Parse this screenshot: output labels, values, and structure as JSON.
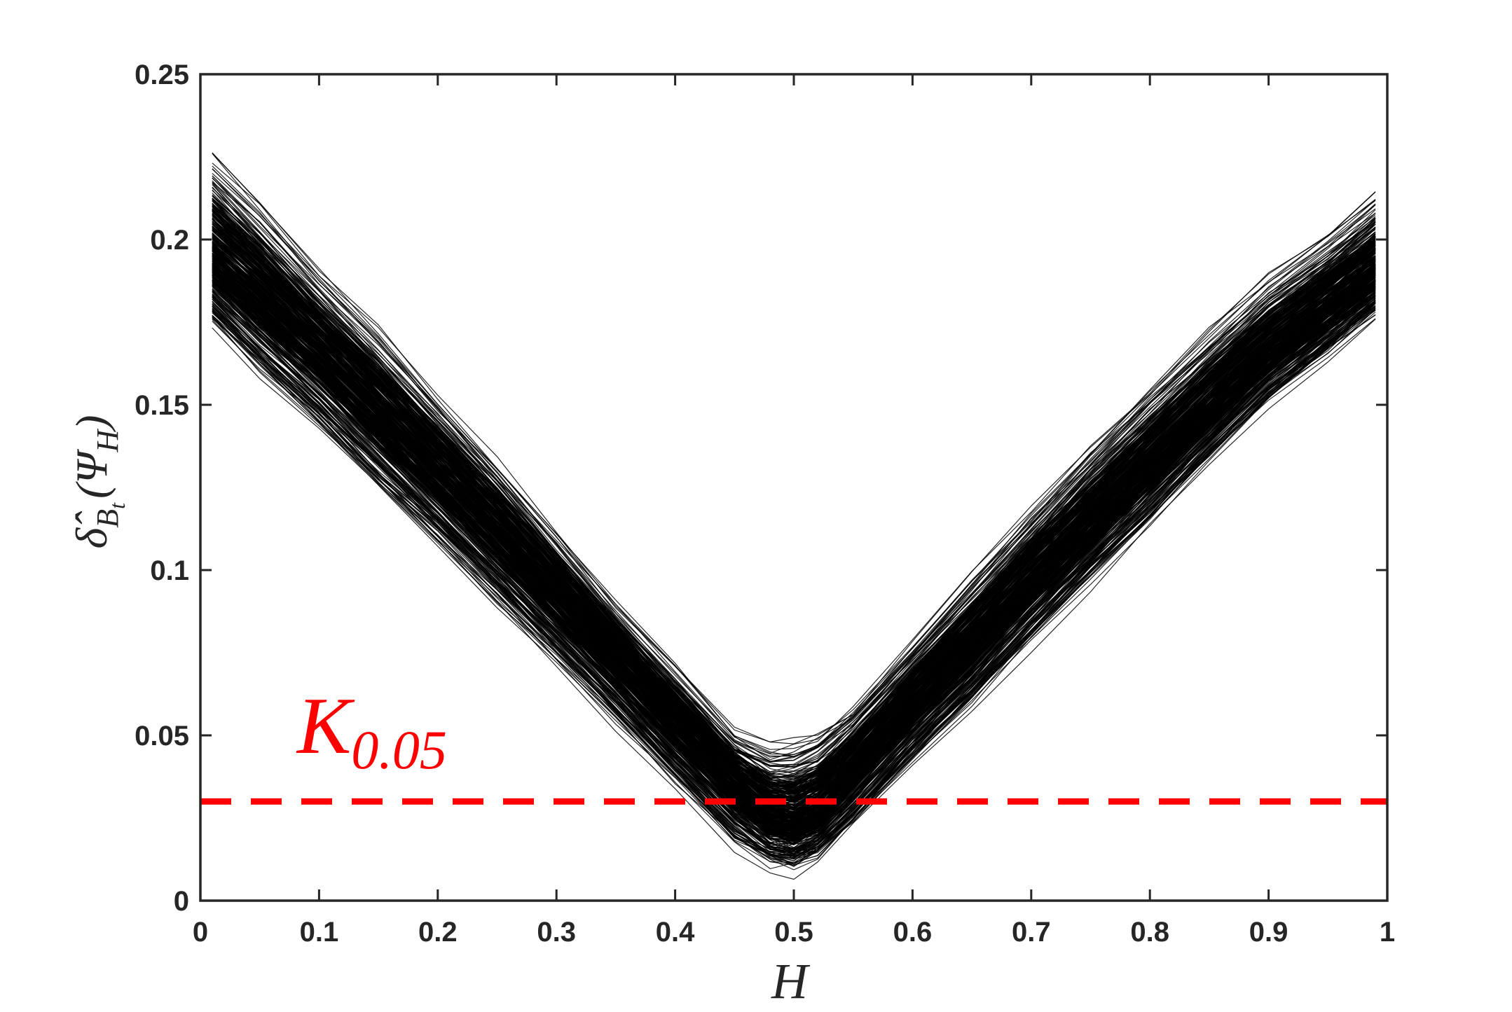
{
  "chart_data": {
    "type": "line",
    "title": "",
    "xlabel": "H",
    "ylabel": {
      "delta": "δ̂",
      "subscript": "B",
      "subsubscript": "t",
      "argument_open": "(Ψ",
      "argument_subscript": "H",
      "argument_close": ")"
    },
    "xlim": [
      0,
      1
    ],
    "ylim": [
      0,
      0.25
    ],
    "xticks": [
      0,
      0.1,
      0.2,
      0.3,
      0.4,
      0.5,
      0.6,
      0.7,
      0.8,
      0.9,
      1
    ],
    "xtick_labels": [
      "0",
      "0.1",
      "0.2",
      "0.3",
      "0.4",
      "0.5",
      "0.6",
      "0.7",
      "0.8",
      "0.9",
      "1"
    ],
    "yticks": [
      0,
      0.05,
      0.1,
      0.15,
      0.2,
      0.25
    ],
    "ytick_labels": [
      "0",
      "0.05",
      "0.1",
      "0.15",
      "0.2",
      "0.25"
    ],
    "grid": false,
    "box": true,
    "series_description": "several hundred Monte Carlo curves forming a V shape with minimum near H = 0.5",
    "series_color": "#000000",
    "x": [
      0.01,
      0.05,
      0.1,
      0.15,
      0.2,
      0.25,
      0.3,
      0.35,
      0.4,
      0.45,
      0.48,
      0.5,
      0.52,
      0.55,
      0.6,
      0.65,
      0.7,
      0.75,
      0.8,
      0.85,
      0.9,
      0.95,
      0.99
    ],
    "band": {
      "upper": [
        0.225,
        0.21,
        0.19,
        0.172,
        0.152,
        0.132,
        0.111,
        0.09,
        0.07,
        0.05,
        0.046,
        0.047,
        0.05,
        0.058,
        0.078,
        0.098,
        0.118,
        0.137,
        0.155,
        0.172,
        0.188,
        0.2,
        0.212
      ],
      "center": [
        0.196,
        0.183,
        0.166,
        0.148,
        0.13,
        0.112,
        0.093,
        0.074,
        0.055,
        0.036,
        0.026,
        0.024,
        0.028,
        0.04,
        0.06,
        0.078,
        0.097,
        0.115,
        0.132,
        0.15,
        0.167,
        0.181,
        0.192
      ],
      "lower": [
        0.173,
        0.158,
        0.142,
        0.124,
        0.107,
        0.089,
        0.071,
        0.053,
        0.034,
        0.016,
        0.01,
        0.009,
        0.012,
        0.022,
        0.041,
        0.059,
        0.078,
        0.096,
        0.114,
        0.132,
        0.15,
        0.164,
        0.176
      ]
    },
    "threshold": {
      "value": 0.03,
      "color": "#ff0000",
      "style": "dashed",
      "label_main": "K",
      "label_sub": "0.05"
    }
  }
}
